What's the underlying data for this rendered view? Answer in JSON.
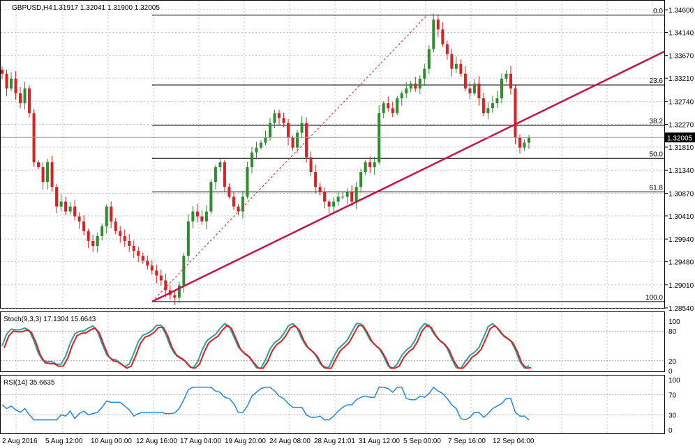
{
  "header": {
    "symbol": "GBPUSD,H4",
    "ohlc": "1.31917 1.32041 1.31900 1.32005"
  },
  "indicators": {
    "stoch_label": "Stoch(9,3,3) 17.1304 15.6643",
    "rsi_label": "RSI(14) 35.6635"
  },
  "colors": {
    "bull": "#2e8b2e",
    "bear": "#dd1f1f",
    "trendline": "#c8104a",
    "fib_line": "#000000",
    "stoch_main": "#2aa0a0",
    "stoch_signal": "#dd1f1f",
    "rsi_line": "#1e88e5",
    "grid": "#b8c4cc"
  },
  "chart_data": [
    {
      "type": "candlestick",
      "symbol": "GBPUSD",
      "timeframe": "H4",
      "current_price": "1.32005",
      "ylim": [
        1.2854,
        1.346
      ],
      "y_ticks": [
        "1.34600",
        "1.34140",
        "1.33670",
        "1.33210",
        "1.32740",
        "1.32270",
        "1.31810",
        "1.31340",
        "1.30870",
        "1.30410",
        "1.29940",
        "1.29480",
        "1.29010",
        "1.28540"
      ],
      "x_ticks": [
        "2 Aug 2016",
        "5 Aug 12:00",
        "10 Aug 00:00",
        "12 Aug 16:00",
        "17 Aug 04:00",
        "19 Aug 20:00",
        "24 Aug 08:00",
        "28 Aug 21:01",
        "31 Aug 12:00",
        "5 Sep 00:00",
        "7 Sep 16:00",
        "12 Sep 04:00"
      ],
      "fibonacci": {
        "levels": [
          {
            "label": "0.0",
            "price": 1.3449
          },
          {
            "label": "23.6",
            "price": 1.3307
          },
          {
            "label": "38.2",
            "price": 1.3225
          },
          {
            "label": "50.0",
            "price": 1.3158
          },
          {
            "label": "61.8",
            "price": 1.309
          },
          {
            "label": "100.0",
            "price": 1.2867
          }
        ]
      },
      "trendline": {
        "start_price": 1.2867,
        "end_price": 1.3375
      },
      "series_close": [
        1.333,
        1.33,
        1.332,
        1.329,
        1.327,
        1.33,
        1.325,
        1.315,
        1.314,
        1.311,
        1.315,
        1.31,
        1.306,
        1.307,
        1.305,
        1.306,
        1.304,
        1.303,
        1.301,
        1.299,
        1.298,
        1.3,
        1.302,
        1.306,
        1.303,
        1.301,
        1.3,
        1.299,
        1.298,
        1.297,
        1.296,
        1.295,
        1.294,
        1.293,
        1.292,
        1.291,
        1.289,
        1.288,
        1.2875,
        1.29,
        1.296,
        1.303,
        1.305,
        1.304,
        1.303,
        1.305,
        1.311,
        1.314,
        1.315,
        1.31,
        1.308,
        1.306,
        1.305,
        1.308,
        1.314,
        1.317,
        1.318,
        1.319,
        1.32,
        1.323,
        1.325,
        1.324,
        1.323,
        1.32,
        1.318,
        1.321,
        1.323,
        1.316,
        1.313,
        1.31,
        1.309,
        1.307,
        1.306,
        1.307,
        1.308,
        1.308,
        1.309,
        1.307,
        1.31,
        1.313,
        1.315,
        1.314,
        1.315,
        1.325,
        1.327,
        1.326,
        1.325,
        1.328,
        1.329,
        1.33,
        1.331,
        1.33,
        1.332,
        1.334,
        1.338,
        1.344,
        1.342,
        1.339,
        1.337,
        1.334,
        1.335,
        1.333,
        1.33,
        1.329,
        1.331,
        1.328,
        1.325,
        1.326,
        1.327,
        1.328,
        1.332,
        1.333,
        1.33,
        1.32,
        1.318,
        1.319,
        1.32
      ],
      "stochastic": {
        "main": 17.1304,
        "signal": 15.6643,
        "ylim": [
          0,
          100
        ],
        "levels": [
          80,
          20
        ],
        "y_ticks": [
          "100",
          "80",
          "20",
          "0"
        ]
      },
      "rsi": {
        "value": 35.6635,
        "ylim": [
          0,
          100
        ],
        "levels": [
          70,
          30
        ],
        "y_ticks": [
          "100",
          "70",
          "30",
          "0"
        ]
      }
    }
  ]
}
